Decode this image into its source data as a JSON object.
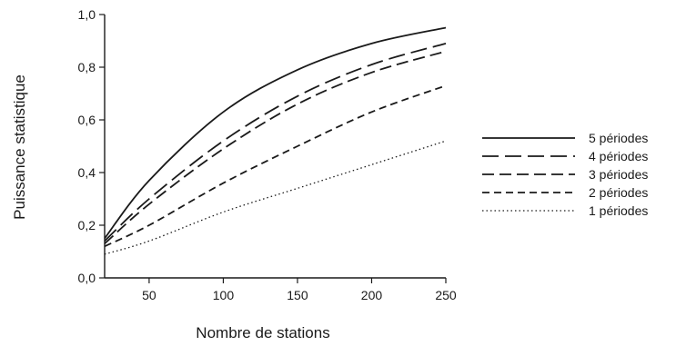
{
  "chart_data": {
    "type": "line",
    "title": "",
    "xlabel": "Nombre de stations",
    "ylabel": "Puissance statistique",
    "xlim": [
      20,
      250
    ],
    "ylim": [
      0,
      1
    ],
    "x_ticks": [
      50,
      100,
      150,
      200,
      250
    ],
    "x_tick_labels": [
      "50",
      "100",
      "150",
      "200",
      "250"
    ],
    "y_ticks": [
      0,
      0.2,
      0.4,
      0.6,
      0.8,
      1.0
    ],
    "y_tick_labels": [
      "0,0",
      "0,2",
      "0,4",
      "0,6",
      "0,8",
      "1,0"
    ],
    "grid": false,
    "legend_position": "right",
    "x": [
      20,
      50,
      100,
      150,
      200,
      250
    ],
    "series": [
      {
        "name": "5 périodes",
        "style": "solid",
        "values": [
          0.15,
          0.37,
          0.63,
          0.79,
          0.89,
          0.95
        ]
      },
      {
        "name": "4 périodes",
        "style": "long-dash",
        "values": [
          0.14,
          0.3,
          0.52,
          0.69,
          0.81,
          0.89
        ]
      },
      {
        "name": "3 périodes",
        "style": "dash",
        "values": [
          0.13,
          0.28,
          0.49,
          0.66,
          0.78,
          0.86
        ]
      },
      {
        "name": "2 périodes",
        "style": "short-dash",
        "values": [
          0.12,
          0.2,
          0.36,
          0.5,
          0.63,
          0.73
        ]
      },
      {
        "name": "1 périodes",
        "style": "dotted",
        "values": [
          0.09,
          0.14,
          0.25,
          0.34,
          0.43,
          0.52
        ]
      }
    ],
    "colors": {
      "line": "#1a1a1a",
      "axis": "#1a1a1a",
      "background": "#ffffff"
    }
  }
}
